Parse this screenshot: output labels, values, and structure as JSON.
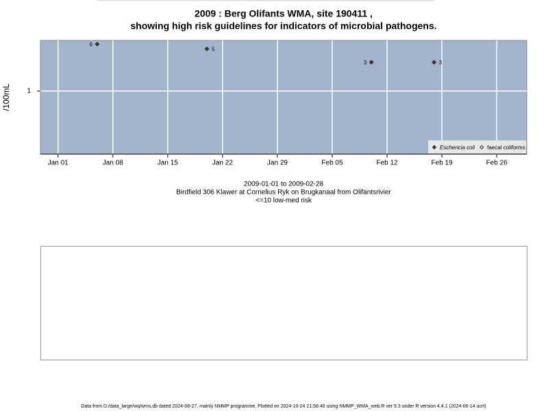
{
  "chart_data": {
    "type": "line",
    "title": [
      "2009 : Berg Olifants WMA, site 190411 ,",
      "showing high risk guidelines for indicators of microbial pathogens."
    ],
    "y_label": "/100mL",
    "x": [
      "2009-01-06",
      "2009-01-20",
      "2009-02-10",
      "2009-02-18"
    ],
    "series": [
      {
        "name": "Eschericia coli",
        "color": "#333333",
        "line_color": "#dddddd",
        "values": [
          6,
          5,
          3,
          3
        ]
      },
      {
        "name": "faecal coliforms",
        "color": "#333333",
        "values": [
          null,
          null,
          null,
          null
        ]
      }
    ],
    "xlim": [
      "2008-12-29T18:00",
      "2009-03-01T20:00"
    ],
    "xticks": [
      {
        "value": "2009-01-01",
        "label": "Jan 01"
      },
      {
        "value": "2009-01-08",
        "label": "Jan 08"
      },
      {
        "value": "2009-01-15",
        "label": "Jan 15"
      },
      {
        "value": "2009-01-22",
        "label": "Jan 22"
      },
      {
        "value": "2009-01-29",
        "label": "Jan 29"
      },
      {
        "value": "2009-02-05",
        "label": "Feb 05"
      },
      {
        "value": "2009-02-12",
        "label": "Feb 12"
      },
      {
        "value": "2009-02-19",
        "label": "Feb 19"
      },
      {
        "value": "2009-02-26",
        "label": "Feb 26"
      }
    ],
    "ylim": [
      0.09,
      6.9
    ],
    "yticks": [
      1
    ],
    "log_y": true,
    "grid": true,
    "legend": "bottom-right",
    "background": "#a3b5cc",
    "notes": [
      "2009-01-01 to 2009-02-28",
      "Birdfield 306 Klawer at Cornelius Ryk on Brugkanaal from Olifantsrivier",
      "<=10 low-med risk"
    ],
    "footer": "Data from D:/data_large/wq/wms.db dated 2024-08-27, mainly NMMP programme. Plotted on 2024-10-24 21:58:46 using NMMP_WMA_web.R ver 9.3 under R version 4.4.1 (2024-06-14 ucrt)"
  }
}
